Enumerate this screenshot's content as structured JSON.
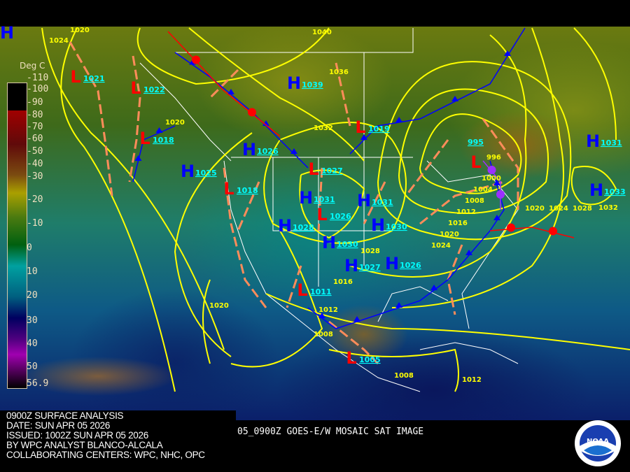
{
  "colorbar": {
    "title": "Deg C",
    "ticks": [
      "-110",
      "-100",
      "-90",
      "-80",
      "-70",
      "-60",
      "-50",
      "-40",
      "-30",
      "-20",
      "-10",
      "0",
      "10",
      "20",
      "30",
      "40",
      "50",
      "56.9"
    ]
  },
  "info": {
    "lines": [
      "0900Z SURFACE ANALYSIS",
      "DATE: SUN APR 05 2026",
      "ISSUED: 1002Z SUN APR 05 2026",
      "BY WPC ANALYST BLANCO-ALCALA",
      "COLLABORATING CENTERS: WPC, NHC, OPC"
    ]
  },
  "sat_label": "05_0900Z GOES-E/W MOSAIC SAT IMAGE",
  "logo": {
    "text": "NOAA",
    "ring": "NATIONAL OCEANIC AND ATMOSPHERIC ADMINISTRATION"
  },
  "colors": {
    "high": "#0000ff",
    "low": "#ff0000",
    "isobar": "#ffff00",
    "pressure_label": "#00ffff",
    "trough": "#ff8c5a",
    "cold_front": "#0000ff",
    "warm_front": "#ff0000",
    "occluded": "#9b30ff"
  },
  "systems": [
    {
      "type": "H",
      "pressure": ""
    },
    {
      "type": "L",
      "pressure": "1021"
    },
    {
      "type": "L",
      "pressure": "1022"
    },
    {
      "type": "L",
      "pressure": "1018"
    },
    {
      "type": "H",
      "pressure": "1025"
    },
    {
      "type": "H",
      "pressure": "1026"
    },
    {
      "type": "L",
      "pressure": "1018"
    },
    {
      "type": "H",
      "pressure": "1039"
    },
    {
      "type": "L",
      "pressure": "1019"
    },
    {
      "type": "L",
      "pressure": "1027"
    },
    {
      "type": "H",
      "pressure": "1031"
    },
    {
      "type": "H",
      "pressure": "1028"
    },
    {
      "type": "L",
      "pressure": "1026"
    },
    {
      "type": "H",
      "pressure": "1030"
    },
    {
      "type": "H",
      "pressure": "1031"
    },
    {
      "type": "H",
      "pressure": "1030"
    },
    {
      "type": "H",
      "pressure": "1027"
    },
    {
      "type": "H",
      "pressure": "1026"
    },
    {
      "type": "L",
      "pressure": "995"
    },
    {
      "type": "H",
      "pressure": "1031"
    },
    {
      "type": "H",
      "pressure": "1033"
    },
    {
      "type": "L",
      "pressure": "1011"
    },
    {
      "type": "L",
      "pressure": "1005"
    }
  ],
  "isobar_labels": [
    "1020",
    "1024",
    "1040",
    "1036",
    "1032",
    "1020",
    "1028",
    "996",
    "1000",
    "1004",
    "1008",
    "1012",
    "1016",
    "1020",
    "1024",
    "1020",
    "1024",
    "1028",
    "1032",
    "1016",
    "1012",
    "1008",
    "1008",
    "1012",
    "1020"
  ]
}
